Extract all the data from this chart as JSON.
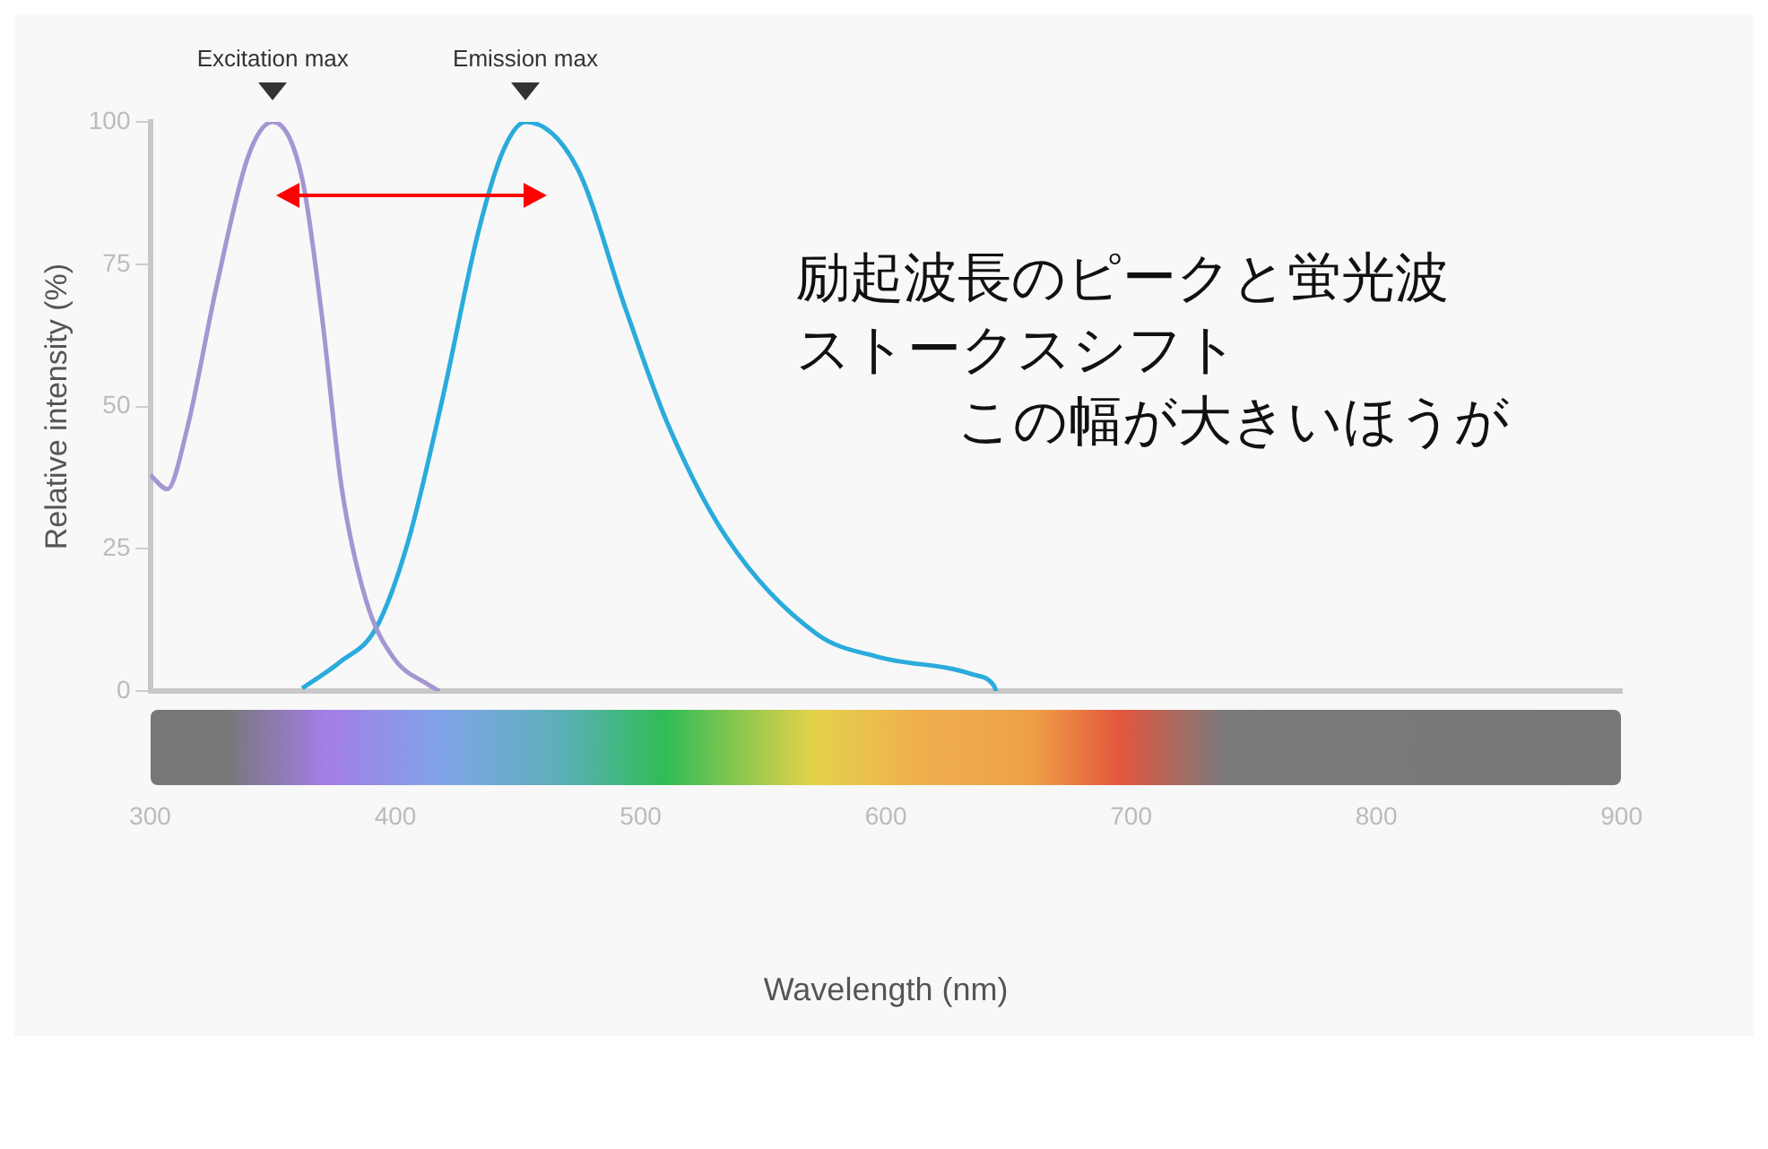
{
  "chart_data": {
    "type": "line",
    "xlabel": "Wavelength (nm)",
    "ylabel": "Relative intensity (%)",
    "xlim": [
      300,
      900
    ],
    "xticks": [
      300,
      400,
      500,
      600,
      700,
      800,
      900
    ],
    "ylim": [
      0,
      100
    ],
    "yticks": [
      0,
      25,
      50,
      75,
      100
    ],
    "grid": false,
    "legend": false,
    "marker": "none",
    "line_style": "solid",
    "series": [
      {
        "color": "#a596d2",
        "x": [
          300,
          307,
          315,
          327,
          340,
          350,
          362,
          370,
          378,
          388,
          399,
          414,
          418
        ],
        "values": [
          38,
          35.5,
          46,
          71,
          94,
          100,
          90,
          66,
          36,
          16,
          6,
          1,
          0
        ]
      },
      {
        "color": "#2aabdc",
        "x": [
          362,
          377,
          392,
          405,
          419,
          434,
          444,
          453,
          474,
          494,
          511,
          535,
          572,
          597,
          635,
          644,
          645
        ],
        "values": [
          0.5,
          5,
          11,
          26,
          51,
          81,
          95,
          100,
          92,
          67,
          47,
          27,
          10,
          6,
          3,
          1,
          0
        ]
      }
    ],
    "annotations": [
      {
        "text": "Excitation max",
        "x": 350,
        "y": 100
      },
      {
        "text": "Emission max",
        "x": 453,
        "y": 100
      },
      "励起波長のピークと蛍光波",
      "ストークスシフト",
      "この幅が大きいほうが"
    ]
  }
}
